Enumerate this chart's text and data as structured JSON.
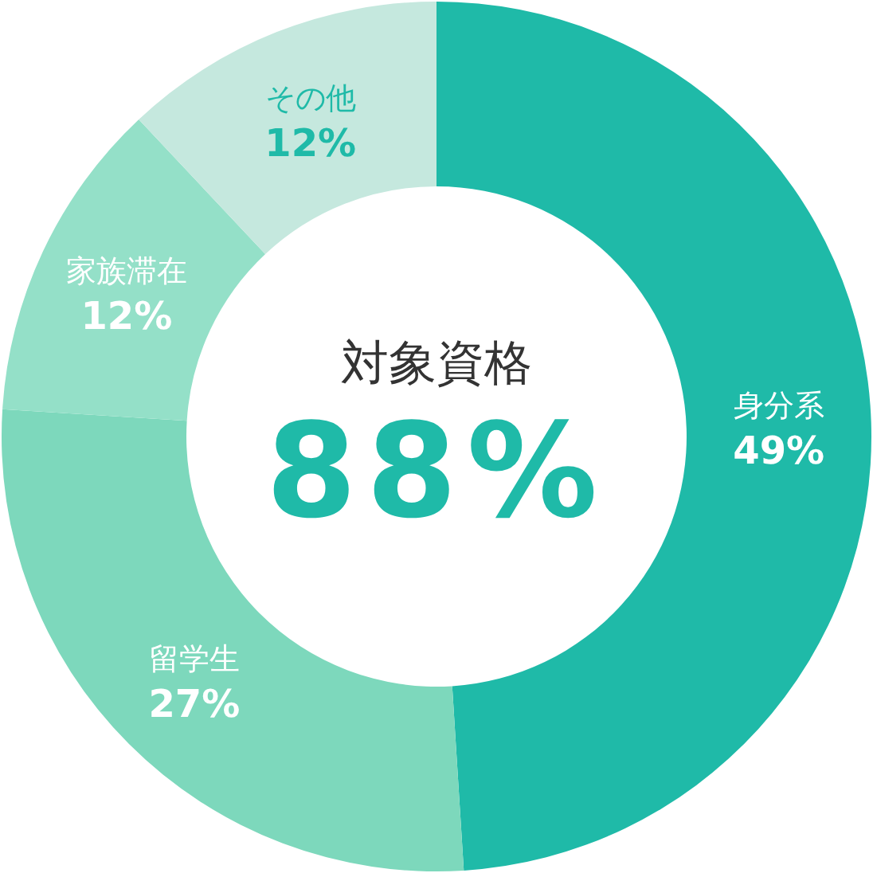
{
  "chart_data": {
    "type": "donut",
    "categories": [
      "身分系",
      "留学生",
      "家族滞在",
      "その他"
    ],
    "values": [
      49,
      27,
      12,
      12
    ],
    "colors": [
      "#1fbaa8",
      "#7dd8bc",
      "#94e0c8",
      "#c5e8de"
    ],
    "value_labels": [
      "49%",
      "27%",
      "12%",
      "12%"
    ],
    "annotations": [
      "対象資格",
      "88%"
    ]
  }
}
